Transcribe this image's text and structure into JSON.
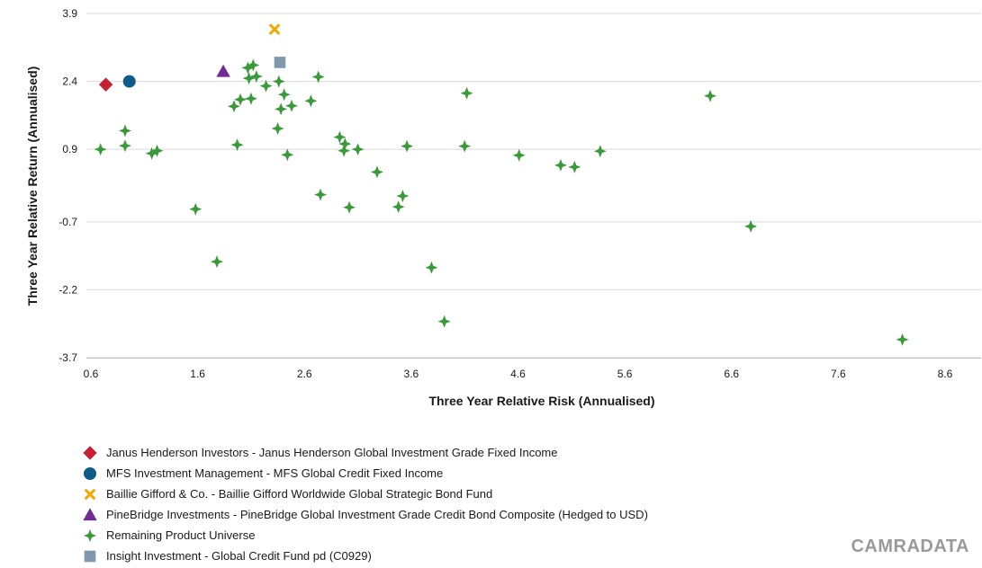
{
  "chart_data": {
    "type": "scatter",
    "xlabel": "Three Year Relative Risk (Annualised)",
    "ylabel": "Three Year Relative Return (Annualised)",
    "xlim": [
      0.6,
      9.0
    ],
    "ylim": [
      -3.7,
      3.9
    ],
    "x_ticks": [
      0.6,
      1.6,
      2.6,
      3.6,
      4.6,
      5.6,
      6.6,
      7.6,
      8.6
    ],
    "y_ticks": [
      3.9,
      2.4,
      0.9,
      -0.7,
      -2.2,
      -3.7
    ],
    "x_tick_labels": [
      "0.6",
      "1.6",
      "2.6",
      "3.6",
      "4.6",
      "5.6",
      "6.6",
      "7.6",
      "8.6"
    ],
    "y_tick_labels": [
      "3.9",
      "2.4",
      "0.9",
      "-0.7",
      "-2.2",
      "-3.7"
    ],
    "grid": "horizontal",
    "legend_position": "bottom-left",
    "series": [
      {
        "name": "Janus Henderson Investors - Janus Henderson Global Investment Grade Fixed Income",
        "marker": "diamond",
        "color": "#c62032",
        "points": [
          [
            0.74,
            2.33
          ]
        ]
      },
      {
        "name": "MFS Investment Management - MFS Global Credit Fixed Income",
        "marker": "circle",
        "color": "#0e5a8a",
        "points": [
          [
            0.96,
            2.4
          ]
        ]
      },
      {
        "name": "Baillie Gifford & Co. - Baillie Gifford Worldwide Global Strategic Bond Fund",
        "marker": "x",
        "color": "#f5a800",
        "points": [
          [
            2.32,
            3.55
          ]
        ]
      },
      {
        "name": "PineBridge Investments - PineBridge Global Investment Grade Credit Bond Composite (Hedged to USD)",
        "marker": "triangle",
        "color": "#6e2c94",
        "points": [
          [
            1.84,
            2.62
          ]
        ]
      },
      {
        "name": "Remaining Product Universe",
        "marker": "star4",
        "color": "#3a9a3a",
        "points": [
          [
            0.69,
            0.9
          ],
          [
            0.92,
            1.31
          ],
          [
            0.92,
            0.98
          ],
          [
            1.17,
            0.81
          ],
          [
            1.22,
            0.87
          ],
          [
            1.58,
            -0.42
          ],
          [
            1.78,
            -1.58
          ],
          [
            1.94,
            1.85
          ],
          [
            1.97,
            1.0
          ],
          [
            2.0,
            2.0
          ],
          [
            2.07,
            2.7
          ],
          [
            2.08,
            2.47
          ],
          [
            2.1,
            2.02
          ],
          [
            2.12,
            2.76
          ],
          [
            2.15,
            2.51
          ],
          [
            2.24,
            2.3
          ],
          [
            2.36,
            2.4
          ],
          [
            2.35,
            1.36
          ],
          [
            2.38,
            1.79
          ],
          [
            2.41,
            2.11
          ],
          [
            2.44,
            0.78
          ],
          [
            2.48,
            1.86
          ],
          [
            2.66,
            1.97
          ],
          [
            2.73,
            2.5
          ],
          [
            2.75,
            -0.1
          ],
          [
            2.93,
            1.17
          ],
          [
            2.98,
            1.02
          ],
          [
            2.97,
            0.87
          ],
          [
            3.02,
            -0.38
          ],
          [
            3.1,
            0.9
          ],
          [
            3.28,
            0.4
          ],
          [
            3.48,
            -0.37
          ],
          [
            3.52,
            -0.13
          ],
          [
            3.56,
            0.97
          ],
          [
            3.79,
            -1.71
          ],
          [
            3.91,
            -2.9
          ],
          [
            4.1,
            0.97
          ],
          [
            4.12,
            2.14
          ],
          [
            4.61,
            0.77
          ],
          [
            5.0,
            0.55
          ],
          [
            5.13,
            0.51
          ],
          [
            5.37,
            0.86
          ],
          [
            6.4,
            2.08
          ],
          [
            6.78,
            -0.8
          ],
          [
            8.2,
            -3.3
          ]
        ]
      },
      {
        "name": "Insight Investment - Global Credit Fund pd (C0929)",
        "marker": "square",
        "color": "#7f98ad",
        "points": [
          [
            2.37,
            2.82
          ]
        ]
      }
    ]
  },
  "legend_order": [
    0,
    1,
    2,
    3,
    4,
    5
  ],
  "brand": "CAMRADATA"
}
